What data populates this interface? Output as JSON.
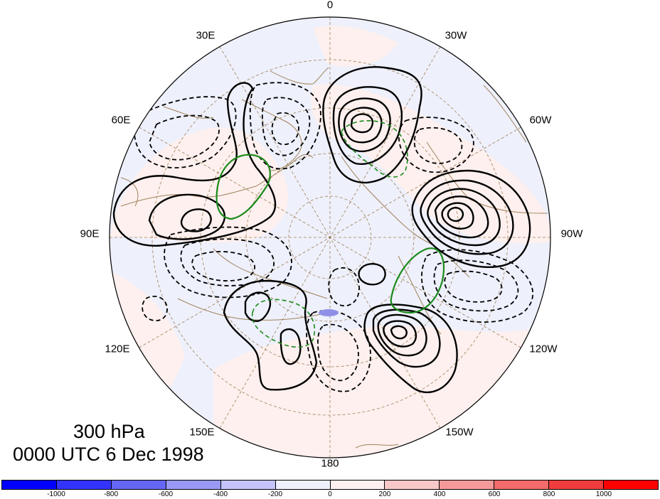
{
  "map": {
    "longitude_labels": [
      "0",
      "30W",
      "60W",
      "90W",
      "120W",
      "150W",
      "180",
      "150E",
      "120E",
      "90E",
      "60E",
      "30E"
    ],
    "title_line1": "300 hPa",
    "title_line2": "0000 UTC 6 Dec 1998",
    "projection": "north-polar-stereographic",
    "contour_styles": {
      "positive": "solid black",
      "negative": "dashed black",
      "green": "green contours, solid and dashed"
    },
    "colors": {
      "background_negative": "#eef0fb",
      "background_positive": "#fdf0ee",
      "coastline": "#a0825a",
      "grid": "#a0825a",
      "contour": "#000000",
      "green_contour": "#1a8a1a"
    }
  },
  "colorbar": {
    "tick_labels": [
      "-1000",
      "-800",
      "-600",
      "-400",
      "-200",
      "0",
      "200",
      "400",
      "600",
      "800",
      "1000"
    ],
    "colors": [
      "#0000ff",
      "#3333ff",
      "#6666f5",
      "#9999f5",
      "#c4c4fa",
      "#eef0fb",
      "#fdf0ee",
      "#f8c8c8",
      "#f59a9a",
      "#f26a6a",
      "#f03c3c",
      "#ff0000"
    ]
  }
}
